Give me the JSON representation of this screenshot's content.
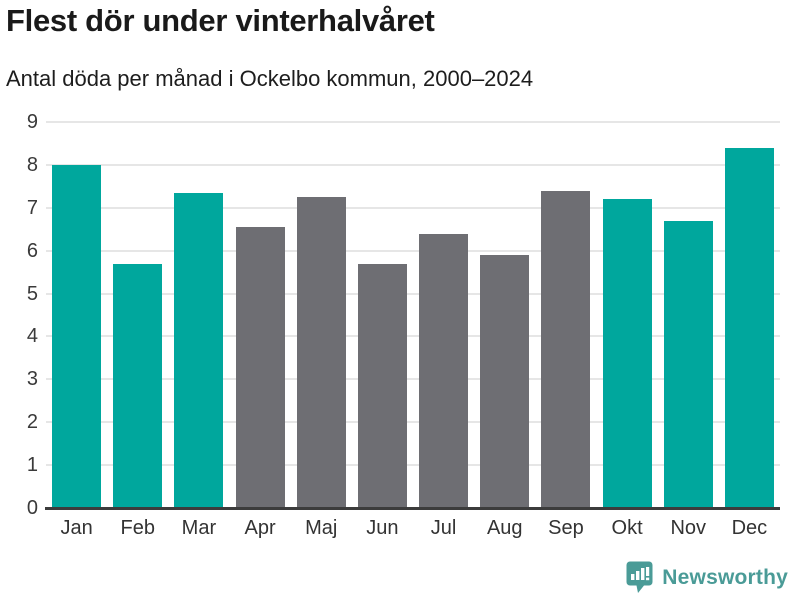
{
  "header": {
    "title": "Flest dör under vinterhalvåret",
    "subtitle": "Antal döda per månad i Ockelbo kommun, 2000–2024"
  },
  "chart_data": {
    "type": "bar",
    "title": "Flest dör under vinterhalvåret",
    "subtitle": "Antal döda per månad i Ockelbo kommun, 2000–2024",
    "categories": [
      "Jan",
      "Feb",
      "Mar",
      "Apr",
      "Maj",
      "Jun",
      "Jul",
      "Aug",
      "Sep",
      "Okt",
      "Nov",
      "Dec"
    ],
    "values": [
      8.0,
      5.7,
      7.35,
      6.55,
      7.25,
      5.7,
      6.4,
      5.9,
      7.4,
      7.2,
      6.7,
      8.4
    ],
    "bar_colors": [
      "#00a79d",
      "#00a79d",
      "#00a79d",
      "#6e6e73",
      "#6e6e73",
      "#6e6e73",
      "#6e6e73",
      "#6e6e73",
      "#6e6e73",
      "#00a79d",
      "#00a79d",
      "#00a79d"
    ],
    "highlight_color": "#00a79d",
    "muted_color": "#6e6e73",
    "xlabel": "",
    "ylabel": "",
    "ylim": [
      0,
      9
    ],
    "yticks": [
      0,
      1,
      2,
      3,
      4,
      5,
      6,
      7,
      8,
      9
    ],
    "grid": true,
    "legend": "none"
  },
  "footer": {
    "brand": "Newsworthy",
    "brand_color": "#4a9b97",
    "logo_icon": "bar-chart-speech-bubble-icon"
  }
}
